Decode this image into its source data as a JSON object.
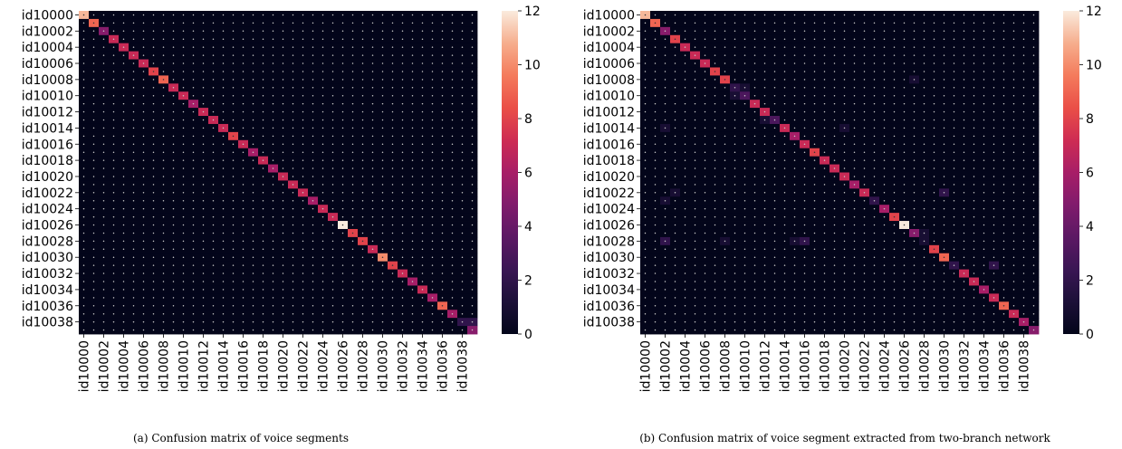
{
  "chart_data": [
    {
      "type": "heatmap",
      "caption": "(a) Confusion matrix of voice segments",
      "n_classes": 40,
      "row_labels": [
        "id10000",
        "id10002",
        "id10004",
        "id10006",
        "id10008",
        "id10010",
        "id10012",
        "id10014",
        "id10016",
        "id10018",
        "id10020",
        "id10022",
        "id10024",
        "id10026",
        "id10028",
        "id10030",
        "id10032",
        "id10034",
        "id10036",
        "id10038"
      ],
      "col_labels": [
        "id10000",
        "id10002",
        "id10004",
        "id10006",
        "id10008",
        "id10010",
        "id10012",
        "id10014",
        "id10016",
        "id10018",
        "id10020",
        "id10022",
        "id10024",
        "id10026",
        "id10028",
        "id10030",
        "id10032",
        "id10034",
        "id10036",
        "id10038"
      ],
      "label_every": 2,
      "colorbar_ticks": [
        "0",
        "2",
        "4",
        "6",
        "8",
        "10",
        "12"
      ],
      "vmin": 0,
      "vmax": 12,
      "colormap": "rocket",
      "diagonal": [
        11,
        9,
        5,
        7,
        7,
        7,
        7,
        8,
        9,
        7,
        7,
        6,
        7,
        7,
        7,
        8,
        7,
        6,
        7,
        6,
        7,
        7,
        7,
        6,
        7,
        7,
        12,
        8,
        8,
        7,
        10,
        8,
        7,
        6,
        7,
        6,
        9,
        6,
        2,
        5
      ],
      "off_diagonal": [
        {
          "row": 38,
          "col": 39,
          "value": 2
        }
      ]
    },
    {
      "type": "heatmap",
      "caption": "(b) Confusion matrix of voice segment extracted from two-branch network",
      "n_classes": 40,
      "row_labels": [
        "id10000",
        "id10002",
        "id10004",
        "id10006",
        "id10008",
        "id10010",
        "id10012",
        "id10014",
        "id10016",
        "id10018",
        "id10020",
        "id10022",
        "id10024",
        "id10026",
        "id10028",
        "id10030",
        "id10032",
        "id10034",
        "id10036",
        "id10038"
      ],
      "col_labels": [
        "id10000",
        "id10002",
        "id10004",
        "id10006",
        "id10008",
        "id10010",
        "id10012",
        "id10014",
        "id10016",
        "id10018",
        "id10020",
        "id10022",
        "id10024",
        "id10026",
        "id10028",
        "id10030",
        "id10032",
        "id10034",
        "id10036",
        "id10038"
      ],
      "label_every": 2,
      "colorbar_ticks": [
        "0",
        "2",
        "4",
        "6",
        "8",
        "10",
        "12"
      ],
      "vmin": 0,
      "vmax": 12,
      "colormap": "rocket",
      "diagonal": [
        11,
        9,
        5,
        8,
        7,
        7,
        7,
        8,
        8,
        2,
        3,
        7,
        7,
        3,
        7,
        6,
        7,
        8,
        7,
        7,
        7,
        6,
        7,
        2,
        6,
        8,
        12,
        5,
        1,
        8,
        9,
        2,
        7,
        7,
        6,
        7,
        9,
        7,
        6,
        5
      ],
      "off_diagonal": [
        {
          "row": 8,
          "col": 27,
          "value": 1
        },
        {
          "row": 9,
          "col": 10,
          "value": 1
        },
        {
          "row": 10,
          "col": 9,
          "value": 1
        },
        {
          "row": 13,
          "col": 12,
          "value": 1
        },
        {
          "row": 14,
          "col": 2,
          "value": 1
        },
        {
          "row": 14,
          "col": 20,
          "value": 1
        },
        {
          "row": 22,
          "col": 3,
          "value": 1
        },
        {
          "row": 22,
          "col": 30,
          "value": 2
        },
        {
          "row": 23,
          "col": 2,
          "value": 1
        },
        {
          "row": 27,
          "col": 28,
          "value": 1
        },
        {
          "row": 28,
          "col": 2,
          "value": 2
        },
        {
          "row": 28,
          "col": 8,
          "value": 1
        },
        {
          "row": 28,
          "col": 15,
          "value": 1
        },
        {
          "row": 28,
          "col": 16,
          "value": 2
        },
        {
          "row": 31,
          "col": 35,
          "value": 2
        }
      ]
    }
  ]
}
